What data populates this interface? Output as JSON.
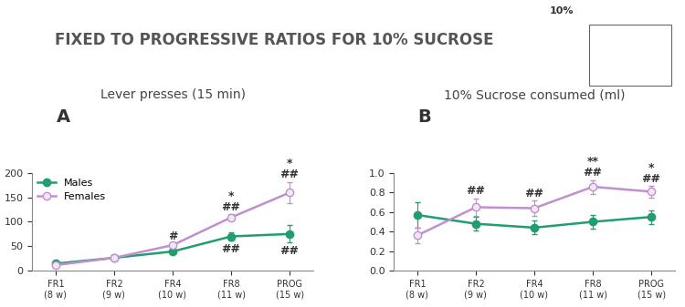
{
  "title": "FIXED TO PROGRESSIVE RATIOS FOR 10% SUCROSE",
  "icon_label": "10%",
  "chart_data": [
    {
      "type": "line",
      "panel": "A",
      "title": "Lever presses (15 min)",
      "categories": [
        "FR1\n(8 w)",
        "FR2\n(9 w)",
        "FR4\n(10 w)",
        "FR8\n(11 w)",
        "PROG\n(15 w)"
      ],
      "series": [
        {
          "name": "Males",
          "color": "#1f9e6f",
          "marker": "o",
          "values": [
            14,
            26,
            39,
            70,
            75
          ],
          "errors": [
            2,
            2,
            3,
            8,
            18
          ],
          "annotations": [
            null,
            null,
            null,
            "##",
            "##"
          ]
        },
        {
          "name": "Females",
          "color": "#c08fd0",
          "marker": "o",
          "values": [
            11,
            26,
            52,
            109,
            160
          ],
          "errors": [
            2,
            2,
            3,
            7,
            22
          ],
          "annotations": [
            null,
            null,
            "#",
            "*\n##",
            "*\n##"
          ]
        }
      ],
      "ylim": [
        0,
        200
      ],
      "yticks": [
        0,
        50,
        100,
        150,
        200
      ],
      "legend": "upper left"
    },
    {
      "type": "line",
      "panel": "B",
      "title": "10% Sucrose consumed (ml)",
      "categories": [
        "FR1\n(8 w)",
        "FR2\n(9 w)",
        "FR4\n(10 w)",
        "FR8\n(11 w)",
        "PROG\n(15 w)"
      ],
      "series": [
        {
          "name": "Males",
          "color": "#1f9e6f",
          "marker": "o",
          "values": [
            0.57,
            0.48,
            0.44,
            0.5,
            0.55
          ],
          "errors": [
            0.13,
            0.07,
            0.07,
            0.07,
            0.07
          ],
          "annotations": [
            null,
            null,
            null,
            null,
            null
          ]
        },
        {
          "name": "Females",
          "color": "#c08fd0",
          "marker": "o",
          "values": [
            0.36,
            0.65,
            0.64,
            0.86,
            0.81
          ],
          "errors": [
            0.08,
            0.09,
            0.08,
            0.07,
            0.06
          ],
          "annotations": [
            null,
            "##",
            "##",
            "**\n##",
            "*\n##"
          ]
        }
      ],
      "ylim": [
        0,
        1.0
      ],
      "yticks": [
        {
          "value": 0,
          "label": "0.0"
        },
        {
          "value": 0.2,
          "label": "0.2"
        },
        {
          "value": 0.4,
          "label": "0.4"
        },
        {
          "value": 0.6,
          "label": "0.6"
        },
        {
          "value": 0.8,
          "label": "0.8"
        },
        {
          "value": 1.0,
          "label": "1.0"
        }
      ]
    }
  ]
}
